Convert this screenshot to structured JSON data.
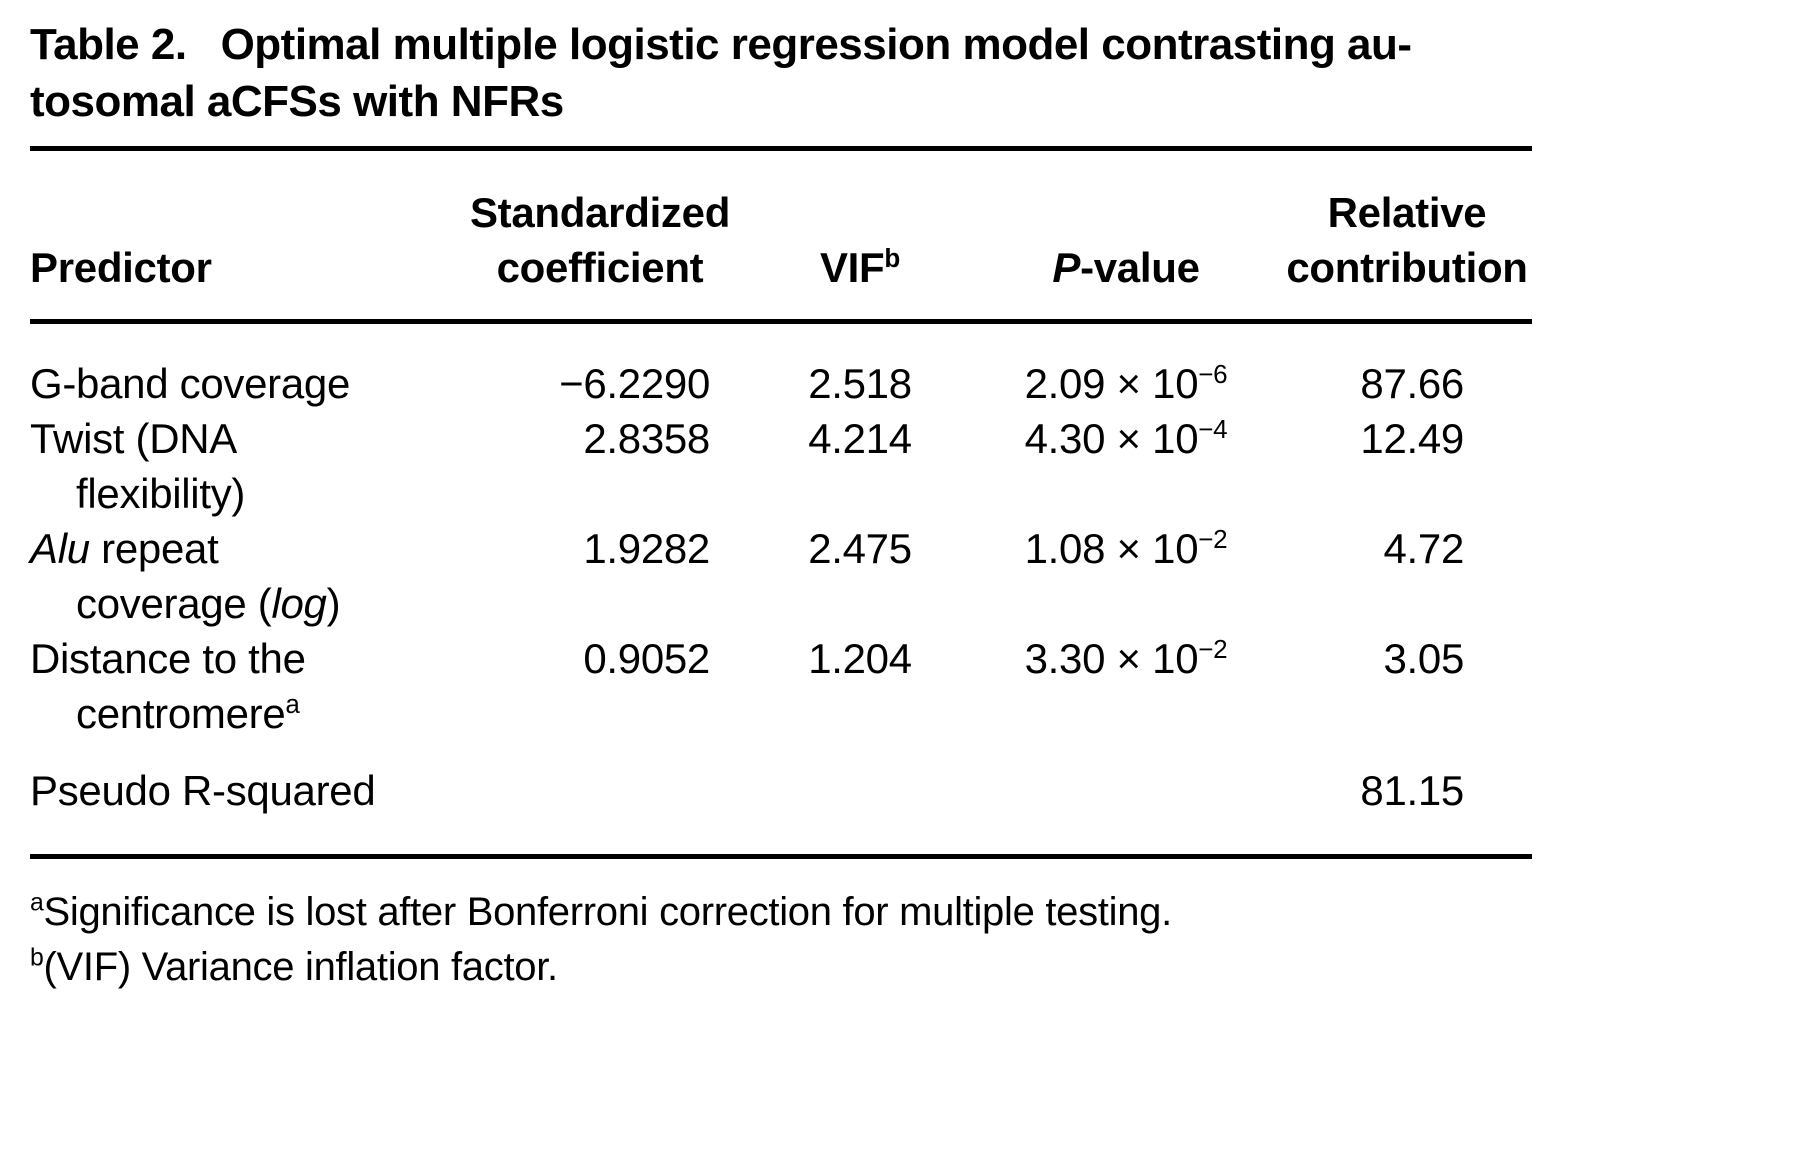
{
  "title": {
    "label": "Table 2.",
    "line1": "Optimal multiple logistic regression model contrasting au-",
    "line2": "tosomal aCFSs with NFRs"
  },
  "header": {
    "predictor": "Predictor",
    "coef_l1": "Standardized",
    "coef_l2": "coefficient",
    "vif": "VIF",
    "vif_sup": "b",
    "p_italic": "P",
    "p_rest": "-value",
    "rel_l1": "Relative",
    "rel_l2": "contribution"
  },
  "rows": [
    {
      "pred_l1": "G-band coverage",
      "coef": "−6.2290",
      "vif": "2.518",
      "p_base": "2.09 × 10",
      "p_exp": "−6",
      "rel": "87.66"
    },
    {
      "pred_l1": "Twist (DNA",
      "pred_l2": "flexibility)",
      "coef": "2.8358",
      "vif": "4.214",
      "p_base": "4.30 × 10",
      "p_exp": "−4",
      "rel": "12.49"
    },
    {
      "pred_l1_italic": "Alu",
      "pred_l1_rest": " repeat",
      "pred_l2_pre": "coverage (",
      "pred_l2_italic": "log",
      "pred_l2_post": ")",
      "coef": "1.9282",
      "vif": "2.475",
      "p_base": "1.08 × 10",
      "p_exp": "−2",
      "rel": "4.72"
    },
    {
      "pred_l1": "Distance to the",
      "pred_l2": "centromere",
      "pred_l2_sup": "a",
      "coef": "0.9052",
      "vif": "1.204",
      "p_base": "3.30 × 10",
      "p_exp": "−2",
      "rel": "3.05"
    },
    {
      "pred_l1": "Pseudo R-squared",
      "rel": "81.15"
    }
  ],
  "footnotes": [
    {
      "marker": "a",
      "text": "Significance is lost after Bonferroni correction for multiple testing."
    },
    {
      "marker": "b",
      "text": "(VIF) Variance inflation factor."
    }
  ],
  "chart_data": {
    "type": "table",
    "title": "Table 2. Optimal multiple logistic regression model contrasting autosomal aCFSs with NFRs",
    "columns": [
      "Predictor",
      "Standardized coefficient",
      "VIF",
      "P-value",
      "Relative contribution"
    ],
    "rows": [
      [
        "G-band coverage",
        -6.229,
        2.518,
        "2.09 × 10−6",
        87.66
      ],
      [
        "Twist (DNA flexibility)",
        2.8358,
        4.214,
        "4.30 × 10−4",
        12.49
      ],
      [
        "Alu repeat coverage (log)",
        1.9282,
        2.475,
        "1.08 × 10−2",
        4.72
      ],
      [
        "Distance to the centromere",
        0.9052,
        1.204,
        "3.30 × 10−2",
        3.05
      ],
      [
        "Pseudo R-squared",
        null,
        null,
        null,
        81.15
      ]
    ],
    "footnotes": [
      "a: Significance is lost after Bonferroni correction for multiple testing.",
      "b: (VIF) Variance inflation factor."
    ]
  }
}
